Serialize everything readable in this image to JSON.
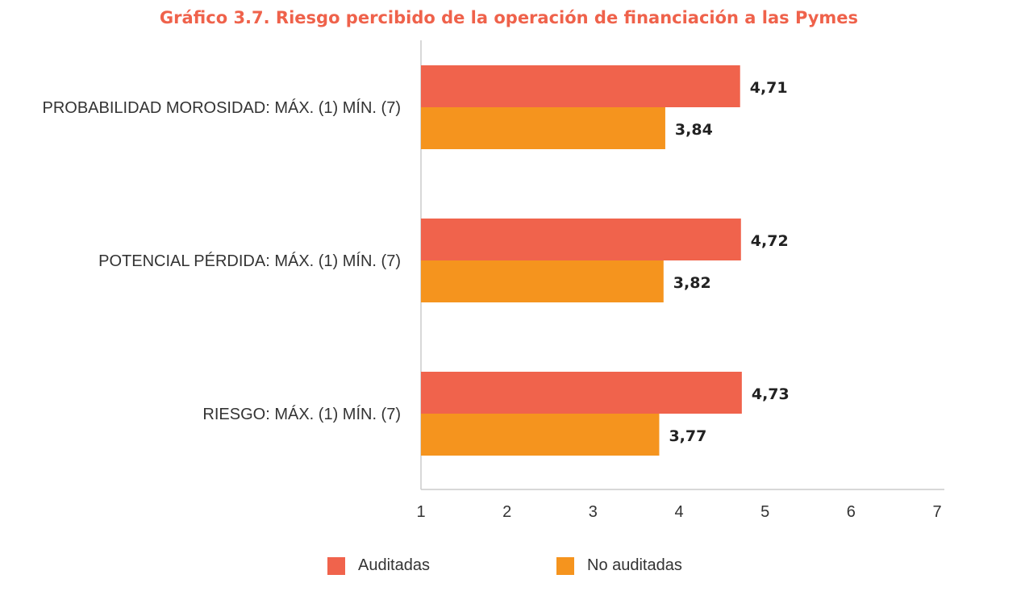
{
  "chart_data": {
    "type": "bar",
    "orientation": "horizontal",
    "title": "Gráfico 3.7. Riesgo percibido de la operación de financiación a las Pymes",
    "categories": [
      "PROBABILIDAD MOROSIDAD: MÁX. (1) MÍN. (7)",
      "POTENCIAL PÉRDIDA: MÁX. (1) MÍN. (7)",
      "RIESGO: MÁX. (1) MÍN. (7)"
    ],
    "series": [
      {
        "name": "Auditadas",
        "color": "#f0634c",
        "values": [
          4.71,
          4.72,
          4.73
        ],
        "labels": [
          "4,71",
          "4,72",
          "4,73"
        ]
      },
      {
        "name": "No auditadas",
        "color": "#f5941e",
        "values": [
          3.84,
          3.82,
          3.77
        ],
        "labels": [
          "3,84",
          "3,82",
          "3,77"
        ]
      }
    ],
    "xlim": [
      1,
      7
    ],
    "xticks": [
      "1",
      "2",
      "3",
      "4",
      "5",
      "6",
      "7"
    ],
    "grid": false,
    "legend_position": "bottom"
  }
}
